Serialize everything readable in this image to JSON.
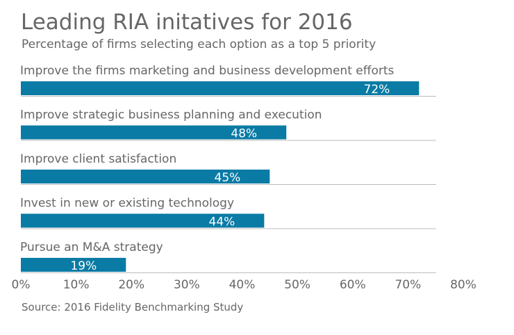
{
  "chart_data": {
    "type": "bar",
    "orientation": "horizontal",
    "title": "Leading RIA initatives for 2016",
    "subtitle": "Percentage of firms selecting each option as a top 5 priority",
    "source": "Source: 2016 Fidelity Benchmarking Study",
    "categories": [
      "Improve the firms marketing and business development efforts",
      "Improve strategic business planning and execution",
      "Improve client satisfaction",
      "Invest in new or existing technology",
      "Pursue an M&A strategy"
    ],
    "values": [
      72,
      48,
      45,
      44,
      19
    ],
    "data_labels": [
      "72%",
      "48%",
      "45%",
      "44%",
      "19%"
    ],
    "xlim": [
      0,
      80
    ],
    "xticks": [
      "0%",
      "10%",
      "20%",
      "30%",
      "40%",
      "50%",
      "60%",
      "70%",
      "80%"
    ],
    "grid": false,
    "bar_color": "#0a7ba5",
    "text_color": "#666666"
  }
}
